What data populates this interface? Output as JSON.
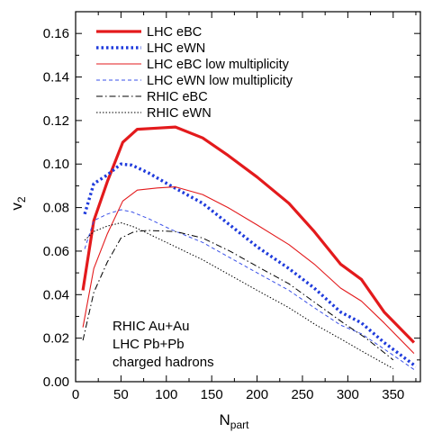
{
  "chart_data": {
    "type": "line",
    "xlabel": "N",
    "xlabel_sub": "part",
    "ylabel": "v",
    "ylabel_sub": "2",
    "xlim": [
      0,
      380
    ],
    "ylim": [
      0.0,
      0.17
    ],
    "x_ticks": [
      0,
      50,
      100,
      150,
      200,
      250,
      300,
      350
    ],
    "x_tick_labels": [
      "0",
      "50",
      "100",
      "150",
      "200",
      "250",
      "300",
      "350"
    ],
    "y_ticks": [
      0.0,
      0.02,
      0.04,
      0.06,
      0.08,
      0.1,
      0.12,
      0.14,
      0.16
    ],
    "y_tick_labels": [
      "0.00",
      "0.02",
      "0.04",
      "0.06",
      "0.08",
      "0.10",
      "0.12",
      "0.14",
      "0.16"
    ],
    "grid": false,
    "legend_position": "top-left",
    "annotation": [
      "RHIC Au+Au",
      "LHC Pb+Pb",
      "charged hadrons"
    ],
    "series": [
      {
        "name": "LHC eBC",
        "color": "#e31a1c",
        "width": 3.2,
        "dash": "",
        "x": [
          8,
          20,
          35,
          52,
          68,
          90,
          110,
          140,
          168,
          200,
          235,
          263,
          292,
          315,
          340,
          373
        ],
        "y": [
          0.042,
          0.074,
          0.092,
          0.11,
          0.116,
          0.1165,
          0.117,
          0.112,
          0.104,
          0.094,
          0.082,
          0.069,
          0.054,
          0.047,
          0.032,
          0.018
        ]
      },
      {
        "name": "LHC eWN",
        "color": "#1f3bdc",
        "width": 3.4,
        "dash": "2.5,3",
        "x": [
          10,
          20,
          35,
          50,
          62,
          80,
          105,
          140,
          170,
          200,
          235,
          263,
          292,
          315,
          340,
          375
        ],
        "y": [
          0.077,
          0.091,
          0.095,
          0.1,
          0.0995,
          0.096,
          0.09,
          0.082,
          0.072,
          0.062,
          0.052,
          0.043,
          0.032,
          0.027,
          0.018,
          0.007
        ]
      },
      {
        "name": "LHC eBC low multiplicity",
        "color": "#e31a1c",
        "width": 1.1,
        "dash": "",
        "x": [
          8,
          20,
          35,
          52,
          68,
          90,
          110,
          140,
          168,
          200,
          235,
          263,
          292,
          315,
          340,
          373
        ],
        "y": [
          0.025,
          0.052,
          0.068,
          0.083,
          0.088,
          0.089,
          0.0895,
          0.086,
          0.08,
          0.072,
          0.063,
          0.054,
          0.043,
          0.037,
          0.027,
          0.013
        ]
      },
      {
        "name": "LHC eWN low multiplicity",
        "color": "#3a50e8",
        "width": 1.0,
        "dash": "4,3",
        "x": [
          10,
          20,
          35,
          50,
          62,
          80,
          105,
          140,
          170,
          200,
          235,
          263,
          292,
          315,
          340,
          375
        ],
        "y": [
          0.061,
          0.074,
          0.077,
          0.079,
          0.078,
          0.075,
          0.07,
          0.064,
          0.057,
          0.05,
          0.042,
          0.034,
          0.026,
          0.022,
          0.015,
          0.005
        ]
      },
      {
        "name": "RHIC eBC",
        "color": "#000000",
        "width": 1.0,
        "dash": "7,3,1.5,3",
        "x": [
          8,
          20,
          35,
          50,
          65,
          80,
          110,
          140,
          170,
          200,
          235,
          265,
          295,
          320,
          350
        ],
        "y": [
          0.019,
          0.041,
          0.055,
          0.066,
          0.069,
          0.0695,
          0.069,
          0.066,
          0.06,
          0.053,
          0.045,
          0.036,
          0.027,
          0.02,
          0.01
        ]
      },
      {
        "name": "RHIC eWN",
        "color": "#000000",
        "width": 1.0,
        "dash": "1.5,2",
        "x": [
          10,
          20,
          35,
          50,
          65,
          80,
          110,
          140,
          170,
          200,
          235,
          265,
          295,
          320,
          350
        ],
        "y": [
          0.065,
          0.069,
          0.0715,
          0.073,
          0.071,
          0.068,
          0.062,
          0.056,
          0.049,
          0.042,
          0.034,
          0.026,
          0.019,
          0.013,
          0.006
        ]
      }
    ]
  }
}
